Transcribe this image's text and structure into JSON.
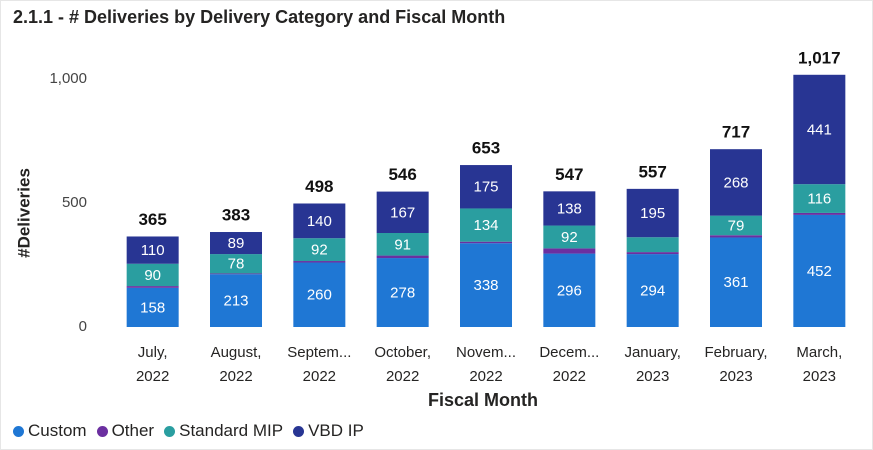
{
  "chart_data": {
    "type": "bar",
    "stacked": true,
    "title": "2.1.1 - # Deliveries by Delivery Category and Fiscal Month",
    "xlabel": "Fiscal Month",
    "ylabel": "#Deliveries",
    "ylim": [
      0,
      1050
    ],
    "yticks": [
      0,
      500,
      1000
    ],
    "ytick_labels": [
      "0",
      "500",
      "1,000"
    ],
    "grid": false,
    "legend_position": "bottom-left",
    "categories": [
      [
        "July,",
        "2022"
      ],
      [
        "August,",
        "2022"
      ],
      [
        "Septem...",
        "2022"
      ],
      [
        "October,",
        "2022"
      ],
      [
        "Novem...",
        "2022"
      ],
      [
        "Decem...",
        "2022"
      ],
      [
        "January,",
        "2023"
      ],
      [
        "February,",
        "2023"
      ],
      [
        "March,",
        "2023"
      ]
    ],
    "series": [
      {
        "name": "Custom",
        "color": "#1f77d4",
        "values": [
          158,
          213,
          260,
          278,
          338,
          296,
          294,
          361,
          452
        ],
        "labels": [
          "158",
          "213",
          "260",
          "278",
          "338",
          "296",
          "294",
          "361",
          "452"
        ]
      },
      {
        "name": "Other",
        "color": "#6b2fa0",
        "values": [
          7,
          3,
          6,
          10,
          6,
          21,
          8,
          9,
          8
        ],
        "labels": [
          "",
          "",
          "",
          "",
          "",
          "",
          "",
          "",
          ""
        ]
      },
      {
        "name": "Standard MIP",
        "color": "#2a9ea0",
        "values": [
          90,
          78,
          92,
          91,
          134,
          92,
          60,
          79,
          116
        ],
        "labels": [
          "90",
          "78",
          "92",
          "91",
          "134",
          "92",
          "",
          "79",
          "116"
        ]
      },
      {
        "name": "VBD IP",
        "color": "#283593",
        "values": [
          110,
          89,
          140,
          167,
          175,
          138,
          195,
          268,
          441
        ],
        "labels": [
          "110",
          "89",
          "140",
          "167",
          "175",
          "138",
          "195",
          "268",
          "441"
        ]
      }
    ],
    "totals": [
      "365",
      "383",
      "498",
      "546",
      "653",
      "547",
      "557",
      "717",
      "1,017"
    ],
    "total_values": [
      365,
      383,
      498,
      546,
      653,
      547,
      557,
      717,
      1017
    ]
  }
}
